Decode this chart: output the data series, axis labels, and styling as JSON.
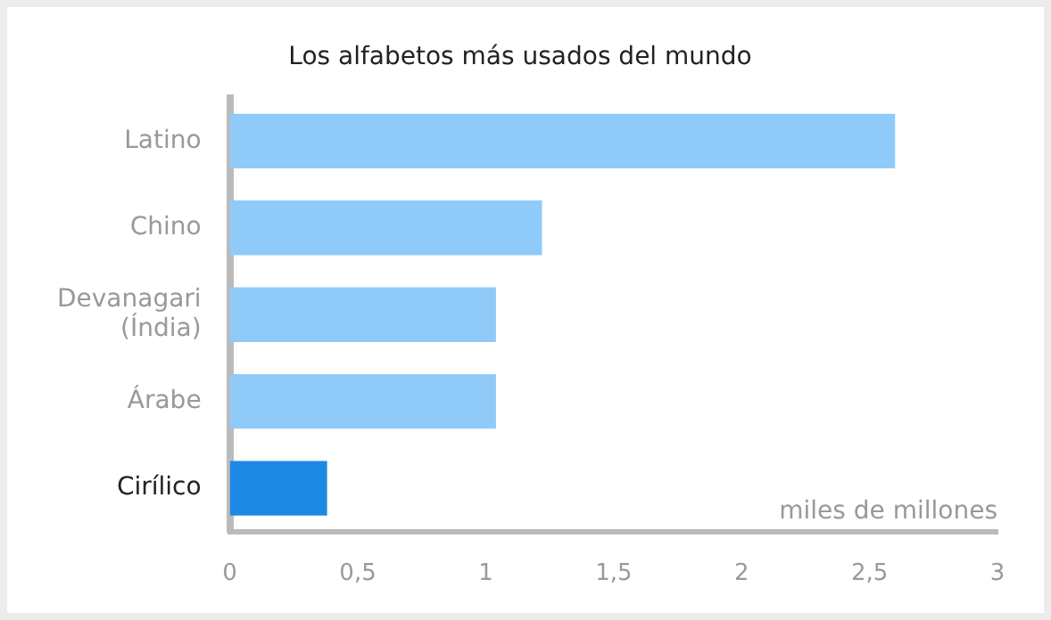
{
  "chart_data": {
    "type": "bar",
    "orientation": "horizontal",
    "title": "Los alfabetos más usados del mundo",
    "xlabel": "miles de millones",
    "categories": [
      "Latino",
      "Chino",
      "Devanagari (Índia)",
      "Árabe",
      "Cirílico"
    ],
    "values": [
      2.6,
      1.22,
      1.04,
      1.04,
      0.38
    ],
    "colors": [
      "#90caf9",
      "#90caf9",
      "#90caf9",
      "#90caf9",
      "#1e88e5"
    ],
    "xlim": [
      0,
      3
    ],
    "xticks": [
      0,
      {
        "value": 0.5,
        "label": "0,5"
      },
      1,
      {
        "value": 1.5,
        "label": "1,5"
      },
      2,
      {
        "value": 2.5,
        "label": "2,5"
      },
      3
    ],
    "grid": false,
    "legend": false
  }
}
